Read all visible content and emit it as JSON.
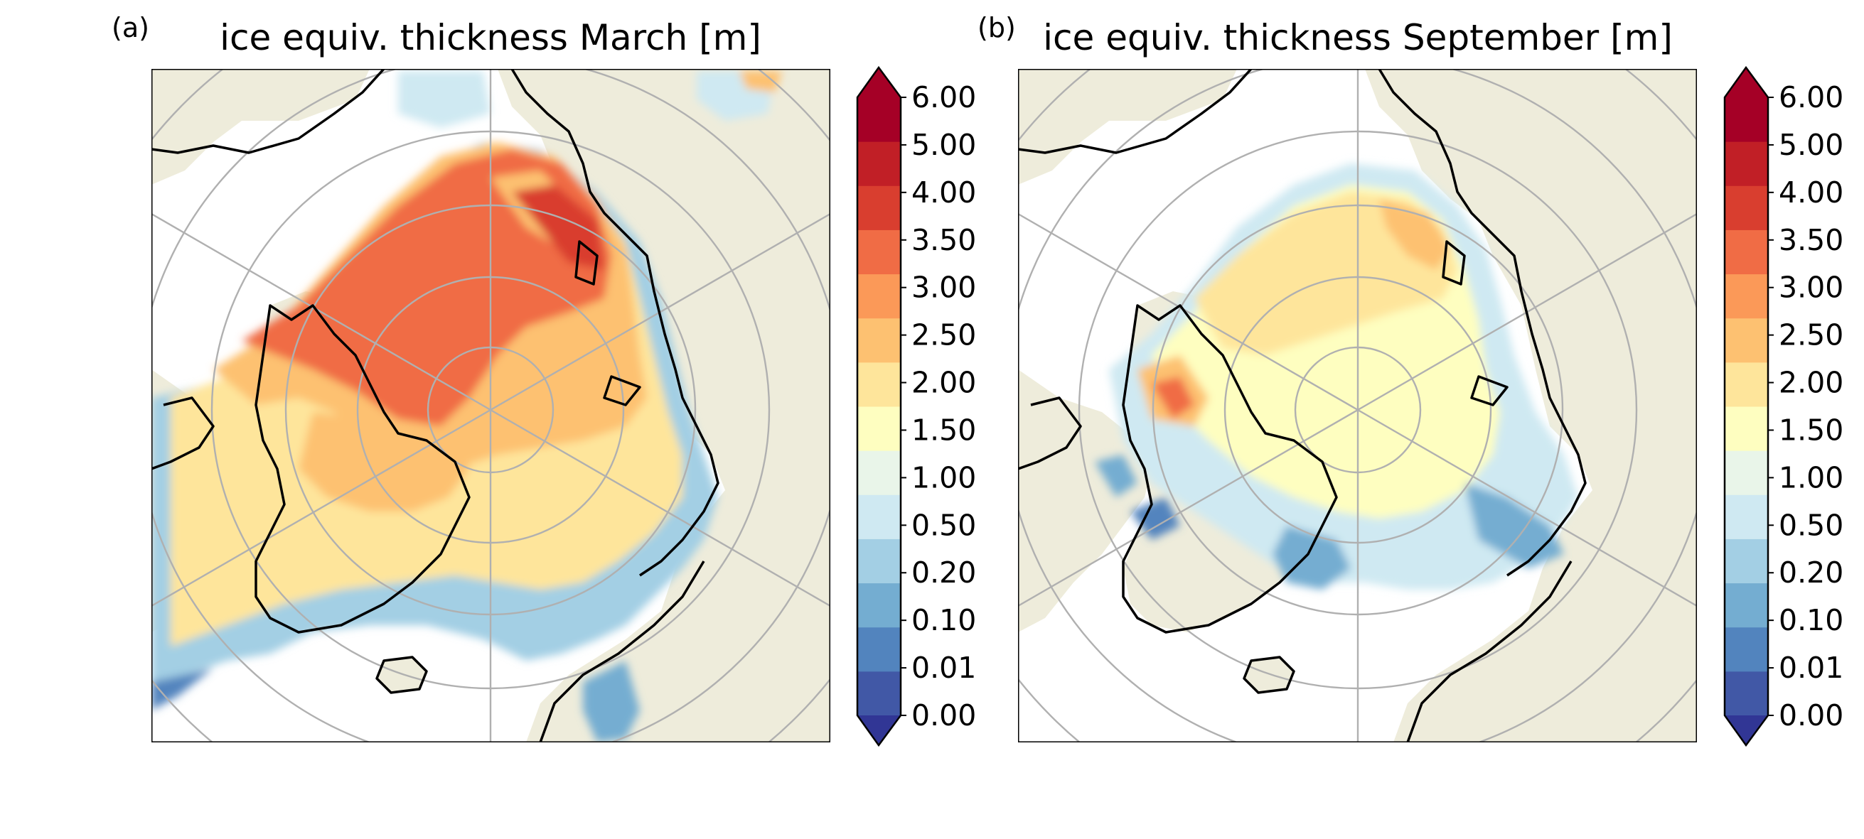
{
  "figure": {
    "panels": [
      {
        "letter": "(a)",
        "title": "ice equiv. thickness March [m]",
        "colorbar_ticks": [
          "6.00",
          "5.00",
          "4.00",
          "3.50",
          "3.00",
          "2.50",
          "2.00",
          "1.50",
          "1.00",
          "0.50",
          "0.20",
          "0.10",
          "0.01",
          "0.00"
        ]
      },
      {
        "letter": "(b)",
        "title": "ice equiv. thickness September [m]",
        "colorbar_ticks": [
          "6.00",
          "5.00",
          "4.00",
          "3.50",
          "3.00",
          "2.50",
          "2.00",
          "1.50",
          "1.00",
          "0.50",
          "0.20",
          "0.10",
          "0.01",
          "0.00"
        ]
      }
    ]
  },
  "chart_data": [
    {
      "type": "heatmap",
      "projection": "north polar stereographic",
      "title": "ice equiv. thickness March [m]",
      "colorbar": {
        "boundaries": [
          0.0,
          0.01,
          0.1,
          0.2,
          0.5,
          1.0,
          1.5,
          2.0,
          2.5,
          3.0,
          3.5,
          4.0,
          5.0,
          6.0
        ],
        "extend": "both",
        "colormap": "RdYlBu_r",
        "colors": [
          "#4158a6",
          "#5284be",
          "#74add1",
          "#a3cfe4",
          "#cfe9f2",
          "#e9f5e9",
          "#fefec0",
          "#fee59b",
          "#fdc171",
          "#fb9958",
          "#f06c45",
          "#d93e2f",
          "#c11f26",
          "#a50026"
        ],
        "under_color": "#313695",
        "over_color": "#a50026"
      },
      "land_color": "#eeecdb",
      "gridlines": "on"
    },
    {
      "type": "heatmap",
      "projection": "north polar stereographic",
      "title": "ice equiv. thickness September [m]",
      "colorbar": {
        "boundaries": [
          0.0,
          0.01,
          0.1,
          0.2,
          0.5,
          1.0,
          1.5,
          2.0,
          2.5,
          3.0,
          3.5,
          4.0,
          5.0,
          6.0
        ],
        "extend": "both",
        "colormap": "RdYlBu_r",
        "colors": [
          "#4158a6",
          "#5284be",
          "#74add1",
          "#a3cfe4",
          "#cfe9f2",
          "#e9f5e9",
          "#fefec0",
          "#fee59b",
          "#fdc171",
          "#fb9958",
          "#f06c45",
          "#d93e2f",
          "#c11f26",
          "#a50026"
        ],
        "under_color": "#313695",
        "over_color": "#a50026"
      },
      "land_color": "#eeecdb",
      "gridlines": "on"
    }
  ]
}
